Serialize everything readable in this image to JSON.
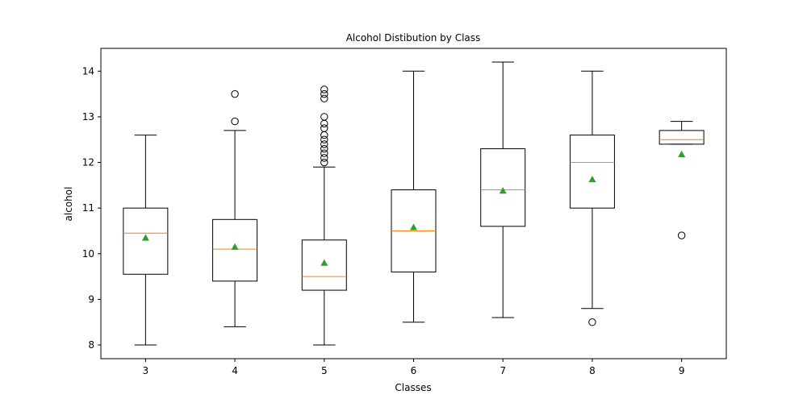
{
  "chart_data": {
    "type": "box",
    "title": "Alcohol Distibution by Class",
    "xlabel": "Classes",
    "ylabel": "alcohol",
    "categories": [
      "3",
      "4",
      "5",
      "6",
      "7",
      "8",
      "9"
    ],
    "y_ticks": [
      "8",
      "9",
      "10",
      "11",
      "12",
      "13",
      "14"
    ],
    "ylim": [
      7.7,
      14.5
    ],
    "grid": false,
    "boxes": [
      {
        "class": "3",
        "whisker_low": 8.0,
        "q1": 9.55,
        "median": 10.45,
        "q3": 11.0,
        "whisker_high": 12.6,
        "mean": 10.35,
        "outliers": []
      },
      {
        "class": "4",
        "whisker_low": 8.4,
        "q1": 9.4,
        "median": 10.1,
        "q3": 10.75,
        "whisker_high": 12.7,
        "mean": 10.15,
        "outliers": [
          12.9,
          13.5
        ]
      },
      {
        "class": "5",
        "whisker_low": 8.0,
        "q1": 9.2,
        "median": 9.5,
        "q3": 10.3,
        "whisker_high": 11.9,
        "mean": 9.8,
        "outliers": [
          12.0,
          12.1,
          12.2,
          12.3,
          12.4,
          12.5,
          12.6,
          12.75,
          12.85,
          13.0,
          13.4,
          13.5,
          13.6
        ]
      },
      {
        "class": "6",
        "whisker_low": 8.5,
        "q1": 9.6,
        "median": 10.5,
        "q3": 11.4,
        "whisker_high": 14.0,
        "mean": 10.58,
        "outliers": []
      },
      {
        "class": "7",
        "whisker_low": 8.6,
        "q1": 10.6,
        "median": 11.4,
        "q3": 12.3,
        "whisker_high": 14.2,
        "mean": 11.38,
        "outliers": []
      },
      {
        "class": "8",
        "whisker_low": 8.8,
        "q1": 11.0,
        "median": 12.0,
        "q3": 12.6,
        "whisker_high": 14.0,
        "mean": 11.63,
        "outliers": [
          8.5
        ]
      },
      {
        "class": "9",
        "whisker_low": 12.4,
        "q1": 12.4,
        "median": 12.5,
        "q3": 12.7,
        "whisker_high": 12.9,
        "mean": 12.18,
        "outliers": [
          10.4
        ]
      }
    ],
    "colors": {
      "box": "#000000",
      "median": "#ff7f0e",
      "mean": "#2ca02c",
      "outlier": "#000000"
    }
  }
}
